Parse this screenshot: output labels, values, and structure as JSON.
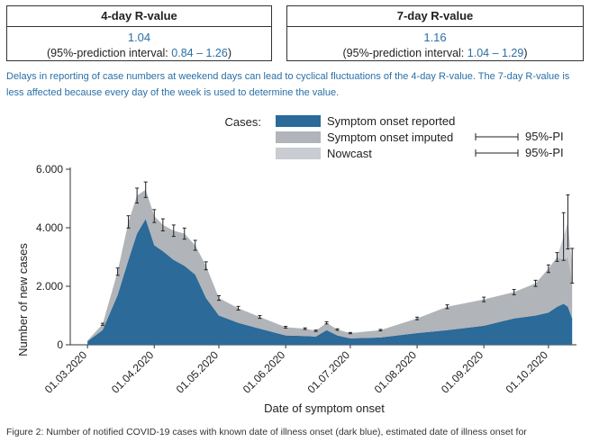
{
  "r4": {
    "title": "4-day R-value",
    "value": "1.04",
    "pi_prefix": "(95%-prediction interval: ",
    "pi_range": "0.84 – 1.26",
    "pi_suffix": ")"
  },
  "r7": {
    "title": "7-day R-value",
    "value": "1.16",
    "pi_prefix": "(95%-prediction interval: ",
    "pi_range": "1.04 – 1.29",
    "pi_suffix": ")"
  },
  "note": "Delays in reporting of case numbers at weekend days can lead to cyclical fluctuations of the 4-day R-value. The 7-day R-value is less affected because every day of the week is used to determine the value.",
  "caption": "Figure 2: Number of notified COVID-19 cases with known date of illness onset (dark blue), estimated date of illness onset for",
  "colors": {
    "reported": "#2b6a99",
    "imputed": "#b1b4b8",
    "nowcast": "#c9ccd0",
    "text_blue": "#2a6fa5"
  },
  "chart_data": {
    "type": "area",
    "xlabel": "Date of symptom onset",
    "ylabel": "Number of new cases",
    "ylim": [
      0,
      6000
    ],
    "yticks": [
      0,
      2000,
      4000,
      6000
    ],
    "ytick_labels": [
      "0",
      "2.000",
      "4.000",
      "6.000"
    ],
    "xtick_labels": [
      "01.03.2020",
      "01.04.2020",
      "01.05.2020",
      "01.06.2020",
      "01.07.2020",
      "01.08.2020",
      "01.09.2020",
      "01.10.2020"
    ],
    "legend": {
      "title": "Cases:",
      "placement": "top",
      "entries": [
        "Symptom onset reported",
        "Symptom onset imputed",
        "Nowcast"
      ],
      "pi_labels": [
        "95%-PI",
        "95%-PI"
      ]
    },
    "dates": [
      "2020-03-01",
      "2020-03-08",
      "2020-03-15",
      "2020-03-20",
      "2020-03-24",
      "2020-03-28",
      "2020-04-01",
      "2020-04-05",
      "2020-04-10",
      "2020-04-15",
      "2020-04-20",
      "2020-04-25",
      "2020-05-01",
      "2020-05-10",
      "2020-05-20",
      "2020-06-01",
      "2020-06-10",
      "2020-06-15",
      "2020-06-20",
      "2020-06-25",
      "2020-07-01",
      "2020-07-15",
      "2020-08-01",
      "2020-08-15",
      "2020-09-01",
      "2020-09-15",
      "2020-09-25",
      "2020-10-01",
      "2020-10-05",
      "2020-10-08",
      "2020-10-10",
      "2020-10-12"
    ],
    "series": [
      {
        "name": "Symptom onset reported",
        "values": [
          120,
          500,
          1700,
          2900,
          3800,
          4300,
          3400,
          3200,
          2900,
          2700,
          2400,
          1600,
          1000,
          750,
          550,
          320,
          300,
          280,
          500,
          320,
          220,
          250,
          400,
          500,
          650,
          900,
          1000,
          1100,
          1300,
          1400,
          1300,
          900
        ]
      },
      {
        "name": "Symptom onset imputed",
        "values": [
          20,
          200,
          800,
          1300,
          1300,
          1000,
          1000,
          900,
          1000,
          1100,
          1000,
          1100,
          600,
          500,
          400,
          280,
          250,
          200,
          250,
          200,
          180,
          250,
          500,
          800,
          900,
          900,
          1100,
          1500,
          1700,
          1500,
          1700,
          1300
        ]
      },
      {
        "name": "Nowcast",
        "values": [
          0,
          0,
          0,
          0,
          0,
          0,
          0,
          0,
          0,
          0,
          0,
          0,
          0,
          0,
          0,
          0,
          0,
          0,
          0,
          0,
          0,
          0,
          0,
          0,
          0,
          0,
          0,
          0,
          0,
          800,
          1200,
          500
        ]
      }
    ]
  }
}
